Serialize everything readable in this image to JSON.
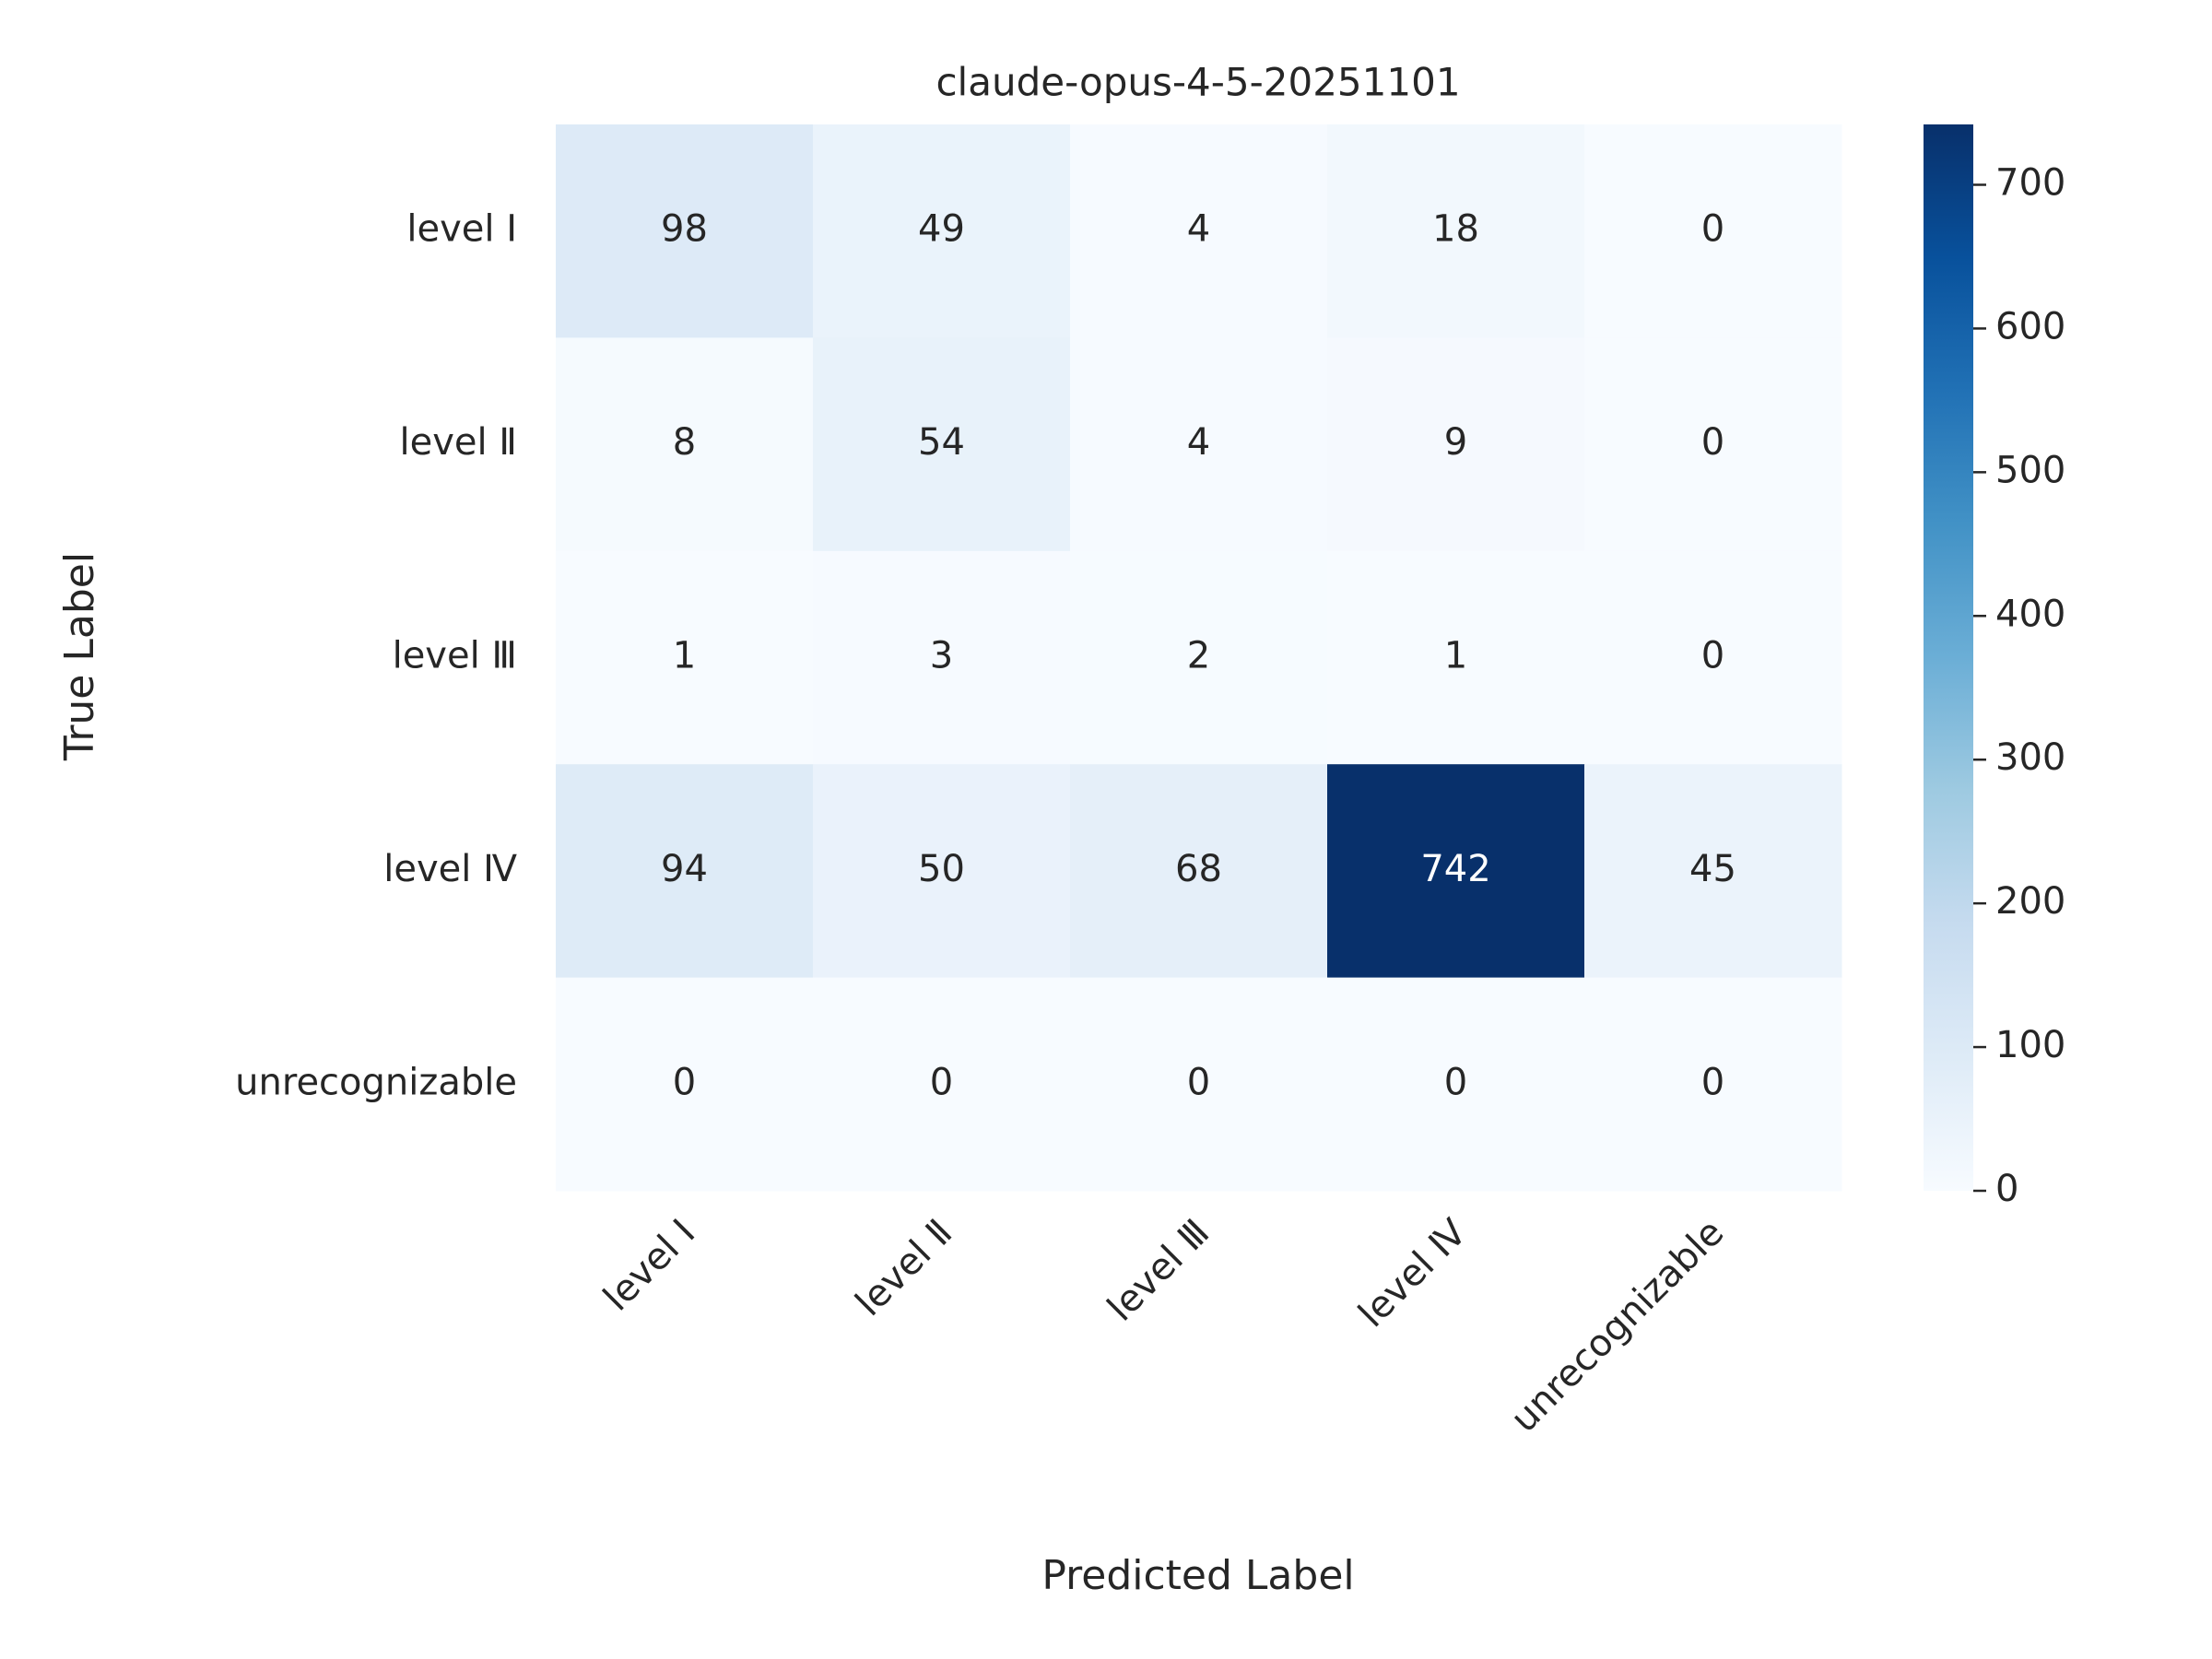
{
  "chart_data": {
    "type": "heatmap",
    "title": "claude-opus-4-5-20251101",
    "xlabel": "Predicted Label",
    "ylabel": "True Label",
    "x_categories": [
      "level Ⅰ",
      "level Ⅱ",
      "level Ⅲ",
      "level Ⅳ",
      "unrecognizable"
    ],
    "y_categories": [
      "level Ⅰ",
      "level Ⅱ",
      "level Ⅲ",
      "level Ⅳ",
      "unrecognizable"
    ],
    "values": [
      [
        98,
        49,
        4,
        18,
        0
      ],
      [
        8,
        54,
        4,
        9,
        0
      ],
      [
        1,
        3,
        2,
        1,
        0
      ],
      [
        94,
        50,
        68,
        742,
        45
      ],
      [
        0,
        0,
        0,
        0,
        0
      ]
    ],
    "colormap": "Blues",
    "clim": [
      0,
      742
    ],
    "cticks": [
      0,
      100,
      200,
      300,
      400,
      500,
      600,
      700
    ]
  }
}
